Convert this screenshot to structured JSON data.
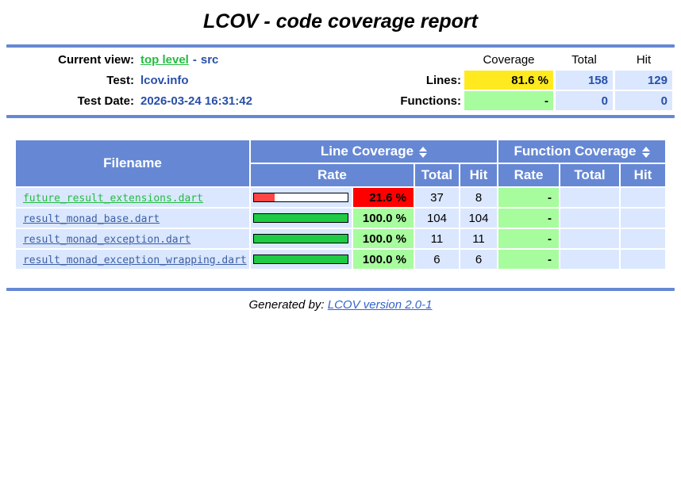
{
  "page": {
    "title": "LCOV - code coverage report",
    "footer_label": "Generated by:",
    "footer_link": "LCOV version 2.0-1"
  },
  "header": {
    "current_view_label": "Current view:",
    "current_view_link": "top level",
    "separator": "-",
    "current_view_name": "src",
    "test_label": "Test:",
    "test_value": "lcov.info",
    "date_label": "Test Date:",
    "date_value": "2026-03-24 16:31:42",
    "col_coverage": "Coverage",
    "col_total": "Total",
    "col_hit": "Hit",
    "lines_label": "Lines:",
    "lines_coverage": "81.6 %",
    "lines_total": "158",
    "lines_hit": "129",
    "functions_label": "Functions:",
    "functions_coverage": "-",
    "functions_total": "0",
    "functions_hit": "0"
  },
  "table": {
    "filename_header": "Filename",
    "line_cov_header": "Line Coverage",
    "func_cov_header": "Function Coverage",
    "sub_rate": "Rate",
    "sub_total": "Total",
    "sub_hit": "Hit",
    "rows": [
      {
        "filename": "future_result_extensions.dart",
        "bar_percent": 21.6,
        "rate": "21.6 %",
        "total": "37",
        "hit": "8",
        "fn_rate": "-",
        "fn_total": "",
        "fn_hit": ""
      },
      {
        "filename": "result_monad_base.dart",
        "bar_percent": 100,
        "rate": "100.0 %",
        "total": "104",
        "hit": "104",
        "fn_rate": "-",
        "fn_total": "",
        "fn_hit": ""
      },
      {
        "filename": "result_monad_exception.dart",
        "bar_percent": 100,
        "rate": "100.0 %",
        "total": "11",
        "hit": "11",
        "fn_rate": "-",
        "fn_total": "",
        "fn_hit": ""
      },
      {
        "filename": "result_monad_exception_wrapping.dart",
        "bar_percent": 100,
        "rate": "100.0 %",
        "total": "6",
        "hit": "6",
        "fn_rate": "-",
        "fn_total": "",
        "fn_hit": ""
      }
    ]
  },
  "colors": {
    "header_blue": "#6688D4",
    "row_bg": "#DAE7FE",
    "coverage_medium": "#FFEA20",
    "coverage_high": "#A7FC9D",
    "coverage_low": "#FF0000",
    "bar_green": "#1FCB44",
    "bar_red": "#FF4444",
    "link_blue": "#284FA8",
    "link_green": "#24BC40"
  }
}
